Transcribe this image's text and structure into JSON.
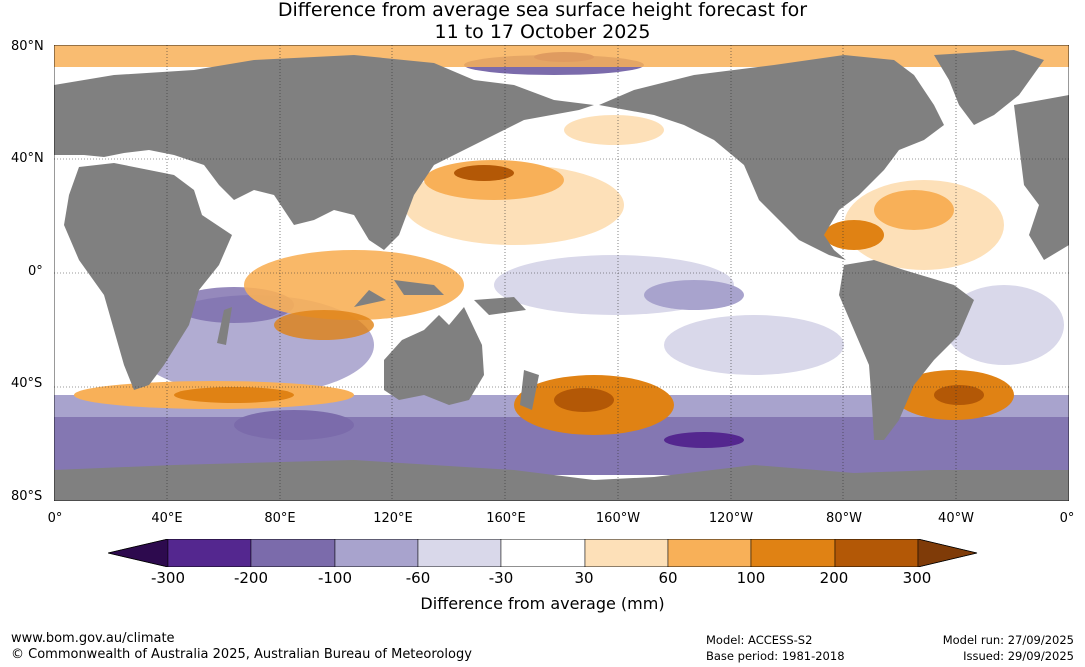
{
  "title": {
    "line1": "Difference from average sea surface height forecast for",
    "line2": "11 to 17 October 2025"
  },
  "lat_labels": [
    "80°N",
    "40°N",
    "0°",
    "40°S",
    "80°S"
  ],
  "lon_labels": [
    "0°",
    "40°E",
    "80°E",
    "120°E",
    "160°E",
    "160°W",
    "120°W",
    "80°W",
    "40°W",
    "0°"
  ],
  "colorbar": {
    "title": "Difference from average (mm)",
    "tick_labels": [
      "-300",
      "-200",
      "-100",
      "-60",
      "-30",
      "30",
      "60",
      "100",
      "200",
      "300"
    ],
    "colors": [
      "#2d0a4e",
      "#54278f",
      "#7b6bab",
      "#a8a3cd",
      "#d9d8ea",
      "#ffffff",
      "#fde0b8",
      "#f8b058",
      "#e08214",
      "#b35806",
      "#7f3b08"
    ]
  },
  "footer": {
    "url": "www.bom.gov.au/climate",
    "copyright": "© Commonwealth of Australia 2025, Australian Bureau of Meteorology",
    "model": "Model: ACCESS-S2",
    "base_period": "Base period: 1981-2018",
    "model_run": "Model run: 27/09/2025",
    "issued": "Issued: 29/09/2025"
  },
  "map_colors": {
    "land": "#808080",
    "grid": "#333333"
  }
}
